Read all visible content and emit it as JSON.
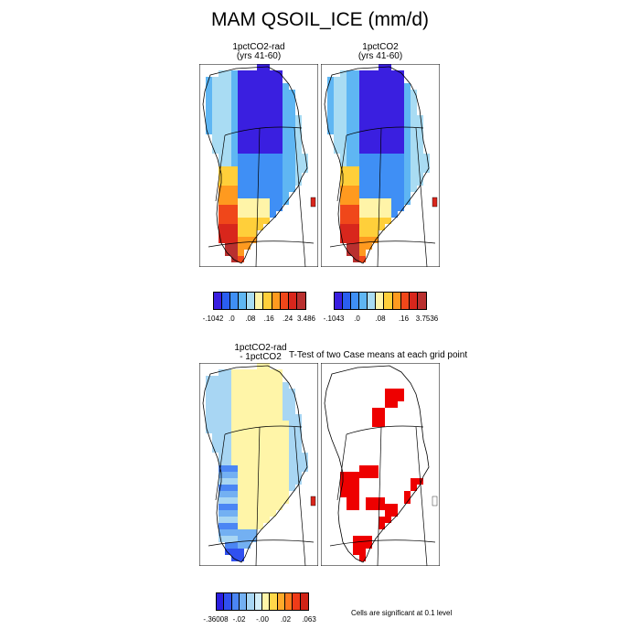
{
  "title": "MAM QSOIL_ICE (mm/d)",
  "panels": {
    "p1": {
      "line1": "1pctCO2-rad",
      "line2": "(yrs 41-60)"
    },
    "p2": {
      "line1": "1pctCO2",
      "line2": "(yrs 41-60)"
    },
    "p3": {
      "line1": "1pctCO2-rad",
      "line2": "- 1pctCO2"
    },
    "p4": {
      "title": "T-Test of two Case means at each grid point"
    }
  },
  "colorbars": {
    "cb1": {
      "labels": [
        "-.1042",
        ".0",
        ".08",
        ".16",
        ".24",
        "3.486"
      ]
    },
    "cb2": {
      "labels": [
        "-.1043",
        ".0",
        ".08",
        ".16",
        "3.7536"
      ]
    },
    "cb3": {
      "labels": [
        "-.36008",
        "-.02",
        "-.00",
        ".02",
        ".063"
      ]
    }
  },
  "palettes": {
    "full": [
      "#3a1fe0",
      "#2a5ef0",
      "#3f8ff5",
      "#5fb6f3",
      "#a9dcf3",
      "#fff4a8",
      "#ffcf3a",
      "#ff9a1f",
      "#f0471a",
      "#d8261c",
      "#b9302f"
    ],
    "diff": [
      "#2b1ee0",
      "#3050f0",
      "#4b86f4",
      "#73b0f2",
      "#a8d6f3",
      "#d3eef8",
      "#fff5a8",
      "#ffd84a",
      "#ffaa2a",
      "#ff7a1e",
      "#ef3b18",
      "#d02316"
    ],
    "significant": "#ee0000"
  },
  "note": "Cells are significant at 0.1 level"
}
